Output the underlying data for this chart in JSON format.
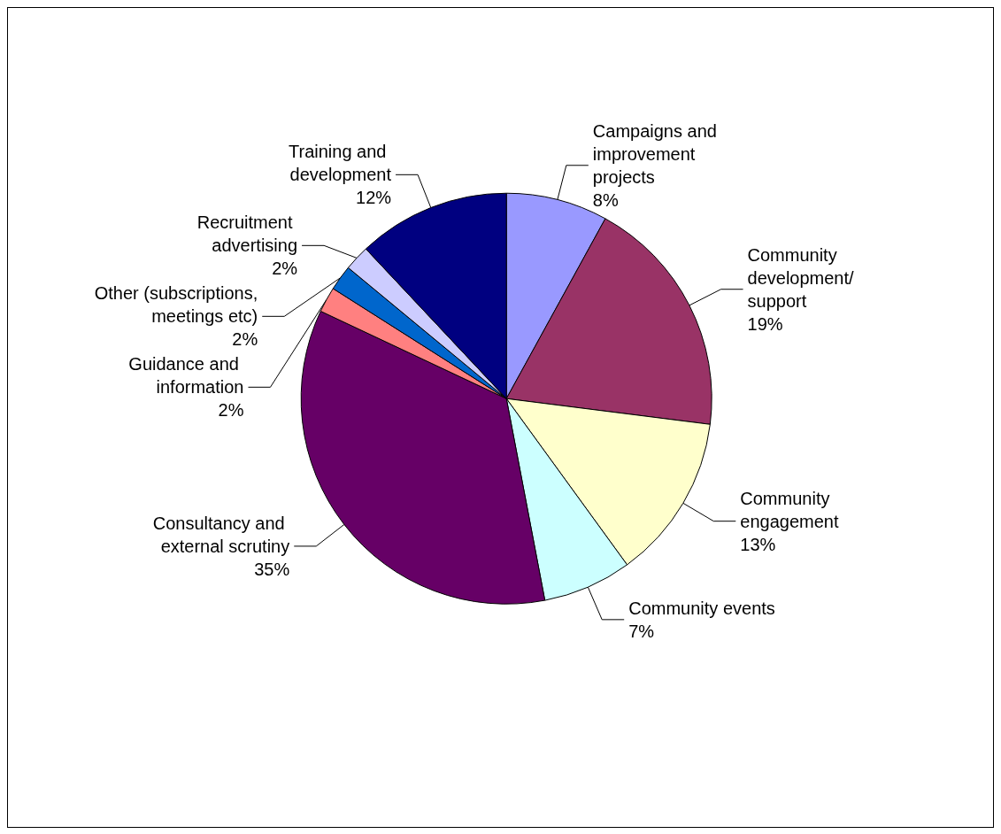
{
  "chart_data": {
    "type": "pie",
    "categories": [
      "Campaigns and improvement projects",
      "Community development/ support",
      "Community engagement",
      "Community events",
      "Consultancy and external scrutiny",
      "Guidance and information",
      "Other (subscriptions, meetings etc)",
      "Recruitment advertising",
      "Training and development"
    ],
    "values": [
      8,
      19,
      13,
      7,
      35,
      2,
      2,
      2,
      12
    ],
    "value_labels": [
      "8%",
      "19%",
      "13%",
      "7%",
      "35%",
      "2%",
      "2%",
      "2%",
      "12%"
    ],
    "colors": [
      "#9999ff",
      "#993366",
      "#ffffcc",
      "#ccffff",
      "#660066",
      "#ff8080",
      "#0066cc",
      "#ccccff",
      "#000080"
    ],
    "legend": false
  }
}
